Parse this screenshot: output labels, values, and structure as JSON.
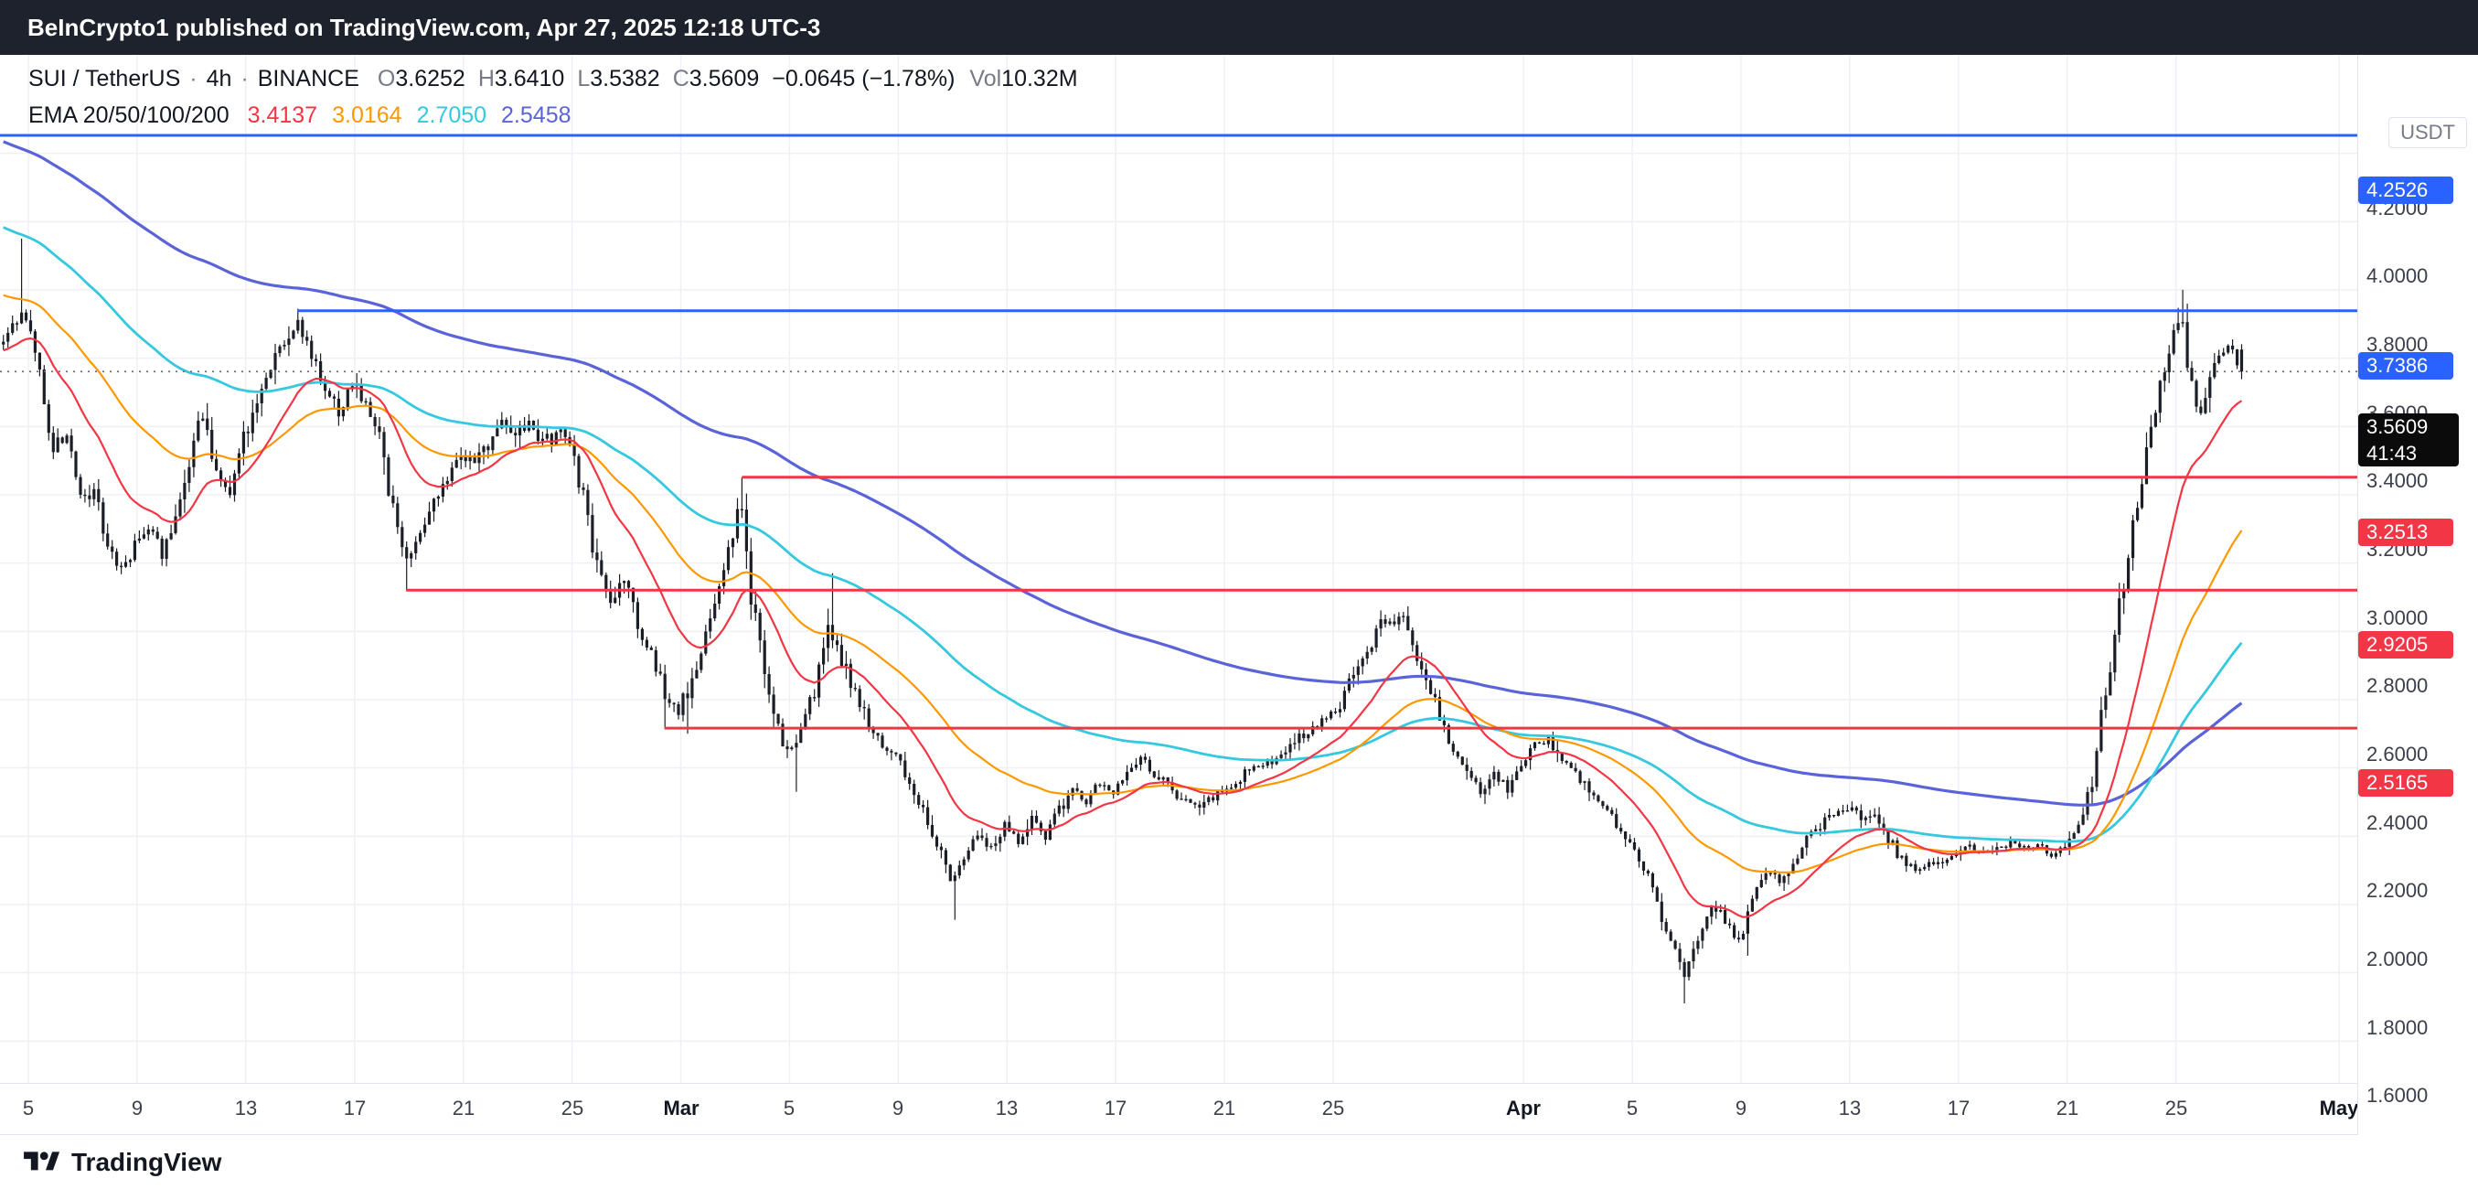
{
  "header": {
    "title": "BeInCrypto1 published on TradingView.com, Apr 27, 2025 12:18 UTC-3"
  },
  "footer": {
    "brand": "TradingView"
  },
  "legend": {
    "symbol": "SUI / TetherUS",
    "sep": "·",
    "interval": "4h",
    "exchange": "BINANCE",
    "o_label": "O",
    "o_value": "3.6252",
    "h_label": "H",
    "h_value": "3.6410",
    "l_label": "L",
    "l_value": "3.5382",
    "c_label": "C",
    "c_value": "3.5609",
    "change": "−0.0645 (−1.78%)",
    "vol_label": "Vol",
    "vol_value": "10.32M",
    "ema_label": "EMA 20/50/100/200",
    "ema_values": [
      "3.4137",
      "3.0164",
      "2.7050",
      "2.5458"
    ]
  },
  "axis": {
    "quote_currency": "USDT"
  },
  "colors": {
    "level_blue": "#2962FF",
    "level_red": "#F23645",
    "ema20": "#F23645",
    "ema50": "#FF9800",
    "ema100": "#35C8DF",
    "ema200": "#5A64D8",
    "candle": "#1b1e27",
    "grid": "#eef0f6",
    "dotted": "#6a6d78",
    "axis_text": "#3c3f4a",
    "badge_current_bg": "#0b0b0b",
    "header_bg": "#1e222d",
    "text_dark": "#131722",
    "text_muted": "#787b86"
  },
  "chart_data": {
    "type": "candlestick",
    "title": "SUI / TetherUS · 4h · BINANCE",
    "symbol": "SUI/USDT",
    "interval": "4h",
    "current_price": 3.5609,
    "countdown": "41:43",
    "last_candle": {
      "open": 3.6252,
      "high": 3.641,
      "low": 3.5382,
      "close": 3.5609,
      "change": -0.0645,
      "change_pct": -1.78,
      "volume": "10.32M"
    },
    "y_axis": {
      "min": 1.478,
      "max": 4.488,
      "tick_step": 0.2,
      "ticks": [
        4.2,
        4.0,
        3.8,
        3.6,
        3.4,
        3.2,
        3.0,
        2.8,
        2.6,
        2.4,
        2.2,
        2.0,
        1.8,
        1.6
      ]
    },
    "x_axis": {
      "origin": "Feb 5 2025",
      "units": "days",
      "ticks": [
        {
          "label": "5",
          "d": 0
        },
        {
          "label": "9",
          "d": 4
        },
        {
          "label": "13",
          "d": 8
        },
        {
          "label": "17",
          "d": 12
        },
        {
          "label": "21",
          "d": 16
        },
        {
          "label": "25",
          "d": 20
        },
        {
          "label": "Mar",
          "d": 24,
          "bold": true
        },
        {
          "label": "5",
          "d": 28
        },
        {
          "label": "9",
          "d": 32
        },
        {
          "label": "13",
          "d": 36
        },
        {
          "label": "17",
          "d": 40
        },
        {
          "label": "21",
          "d": 44
        },
        {
          "label": "25",
          "d": 48
        },
        {
          "label": "Apr",
          "d": 55,
          "bold": true
        },
        {
          "label": "5",
          "d": 59
        },
        {
          "label": "9",
          "d": 63
        },
        {
          "label": "13",
          "d": 67
        },
        {
          "label": "17",
          "d": 71
        },
        {
          "label": "21",
          "d": 75
        },
        {
          "label": "25",
          "d": 79
        },
        {
          "label": "May",
          "d": 85,
          "bold": true
        }
      ]
    },
    "horizontal_levels": [
      {
        "price": 4.2526,
        "color": "level_blue",
        "start_d": null
      },
      {
        "price": 3.7386,
        "color": "level_blue",
        "start_d": 9.9
      },
      {
        "price": 3.2513,
        "color": "level_red",
        "start_d": 26.25
      },
      {
        "price": 2.9205,
        "color": "level_red",
        "start_d": 13.9
      },
      {
        "price": 2.5165,
        "color": "level_red",
        "start_d": 23.4
      }
    ],
    "emas": {
      "periods": [
        20,
        50,
        100,
        200
      ],
      "current": [
        3.4137,
        3.0164,
        2.705,
        2.5458
      ],
      "initial": [
        3.62,
        3.79,
        3.99,
        4.24
      ]
    },
    "price_path_anchors": [
      [
        -1.0,
        3.64
      ],
      [
        -0.5,
        3.7
      ],
      [
        0,
        3.72
      ],
      [
        0.5,
        3.55
      ],
      [
        1,
        3.32
      ],
      [
        1.5,
        3.38
      ],
      [
        2,
        3.18
      ],
      [
        2.5,
        3.22
      ],
      [
        3,
        3.06
      ],
      [
        3.5,
        2.98
      ],
      [
        4,
        3.06
      ],
      [
        4.5,
        3.1
      ],
      [
        5,
        3.03
      ],
      [
        5.5,
        3.15
      ],
      [
        6,
        3.3
      ],
      [
        6.5,
        3.45
      ],
      [
        7,
        3.28
      ],
      [
        7.5,
        3.2
      ],
      [
        8,
        3.35
      ],
      [
        8.5,
        3.5
      ],
      [
        9,
        3.55
      ],
      [
        9.5,
        3.64
      ],
      [
        10,
        3.71
      ],
      [
        10.5,
        3.6
      ],
      [
        11,
        3.5
      ],
      [
        11.5,
        3.45
      ],
      [
        12,
        3.52
      ],
      [
        12.5,
        3.46
      ],
      [
        13,
        3.4
      ],
      [
        13.5,
        3.15
      ],
      [
        14,
        3.02
      ],
      [
        14.5,
        3.1
      ],
      [
        15,
        3.18
      ],
      [
        15.5,
        3.25
      ],
      [
        16,
        3.32
      ],
      [
        16.5,
        3.28
      ],
      [
        17,
        3.35
      ],
      [
        17.5,
        3.44
      ],
      [
        18,
        3.38
      ],
      [
        18.5,
        3.42
      ],
      [
        19,
        3.35
      ],
      [
        19.5,
        3.38
      ],
      [
        20,
        3.35
      ],
      [
        20.5,
        3.2
      ],
      [
        21,
        3.0
      ],
      [
        21.5,
        2.9
      ],
      [
        22,
        2.96
      ],
      [
        22.5,
        2.82
      ],
      [
        23,
        2.74
      ],
      [
        23.5,
        2.62
      ],
      [
        24,
        2.56
      ],
      [
        24.5,
        2.66
      ],
      [
        25,
        2.8
      ],
      [
        25.5,
        2.95
      ],
      [
        26,
        3.1
      ],
      [
        26.3,
        3.18
      ],
      [
        26.6,
        2.92
      ],
      [
        27,
        2.76
      ],
      [
        27.5,
        2.56
      ],
      [
        28,
        2.44
      ],
      [
        28.5,
        2.52
      ],
      [
        29,
        2.62
      ],
      [
        29.5,
        2.82
      ],
      [
        30,
        2.72
      ],
      [
        30.5,
        2.62
      ],
      [
        31,
        2.52
      ],
      [
        31.5,
        2.47
      ],
      [
        32,
        2.44
      ],
      [
        32.5,
        2.36
      ],
      [
        33,
        2.27
      ],
      [
        33.5,
        2.17
      ],
      [
        34,
        2.08
      ],
      [
        34.5,
        2.13
      ],
      [
        35,
        2.2
      ],
      [
        35.5,
        2.16
      ],
      [
        36,
        2.23
      ],
      [
        36.5,
        2.19
      ],
      [
        37,
        2.26
      ],
      [
        37.5,
        2.21
      ],
      [
        38,
        2.28
      ],
      [
        38.5,
        2.33
      ],
      [
        39,
        2.3
      ],
      [
        39.5,
        2.36
      ],
      [
        40,
        2.33
      ],
      [
        40.5,
        2.39
      ],
      [
        41,
        2.43
      ],
      [
        41.5,
        2.38
      ],
      [
        42,
        2.35
      ],
      [
        42.5,
        2.31
      ],
      [
        43,
        2.29
      ],
      [
        43.5,
        2.31
      ],
      [
        44,
        2.34
      ],
      [
        44.5,
        2.36
      ],
      [
        45,
        2.39
      ],
      [
        45.5,
        2.41
      ],
      [
        46,
        2.43
      ],
      [
        46.5,
        2.46
      ],
      [
        47,
        2.49
      ],
      [
        47.5,
        2.53
      ],
      [
        48,
        2.56
      ],
      [
        48.5,
        2.61
      ],
      [
        49,
        2.69
      ],
      [
        49.5,
        2.76
      ],
      [
        50,
        2.83
      ],
      [
        50.5,
        2.85
      ],
      [
        51,
        2.78
      ],
      [
        51.5,
        2.66
      ],
      [
        52,
        2.56
      ],
      [
        52.5,
        2.46
      ],
      [
        53,
        2.39
      ],
      [
        53.5,
        2.33
      ],
      [
        54,
        2.39
      ],
      [
        54.5,
        2.33
      ],
      [
        55,
        2.41
      ],
      [
        55.5,
        2.46
      ],
      [
        56,
        2.49
      ],
      [
        56.5,
        2.43
      ],
      [
        57,
        2.39
      ],
      [
        57.5,
        2.33
      ],
      [
        58,
        2.29
      ],
      [
        58.5,
        2.23
      ],
      [
        59,
        2.19
      ],
      [
        59.5,
        2.11
      ],
      [
        60,
        2.01
      ],
      [
        60.5,
        1.89
      ],
      [
        61,
        1.79
      ],
      [
        61.5,
        1.91
      ],
      [
        62,
        2.01
      ],
      [
        62.5,
        1.96
      ],
      [
        63,
        1.89
      ],
      [
        63.5,
        2.01
      ],
      [
        64,
        2.1
      ],
      [
        64.5,
        2.06
      ],
      [
        65,
        2.13
      ],
      [
        65.5,
        2.19
      ],
      [
        66,
        2.23
      ],
      [
        66.5,
        2.27
      ],
      [
        67,
        2.29
      ],
      [
        67.5,
        2.25
      ],
      [
        68,
        2.27
      ],
      [
        68.5,
        2.19
      ],
      [
        69,
        2.13
      ],
      [
        69.5,
        2.09
      ],
      [
        70,
        2.11
      ],
      [
        70.5,
        2.13
      ],
      [
        71,
        2.15
      ],
      [
        71.5,
        2.17
      ],
      [
        72,
        2.15
      ],
      [
        72.5,
        2.17
      ],
      [
        73,
        2.18
      ],
      [
        73.5,
        2.16
      ],
      [
        74,
        2.17
      ],
      [
        74.5,
        2.15
      ],
      [
        75,
        2.17
      ],
      [
        75.5,
        2.23
      ],
      [
        76,
        2.36
      ],
      [
        76.5,
        2.62
      ],
      [
        77,
        2.88
      ],
      [
        77.5,
        3.12
      ],
      [
        78,
        3.32
      ],
      [
        78.5,
        3.52
      ],
      [
        79,
        3.66
      ],
      [
        79.3,
        3.72
      ],
      [
        79.6,
        3.5
      ],
      [
        80,
        3.46
      ],
      [
        80.5,
        3.58
      ],
      [
        81,
        3.63
      ],
      [
        81.5,
        3.56
      ]
    ],
    "wick_extremes": [
      {
        "d": -0.2,
        "type": "high",
        "p": 3.95
      },
      {
        "d": 9.9,
        "type": "high",
        "p": 3.745
      },
      {
        "d": 13.9,
        "type": "low",
        "p": 2.92
      },
      {
        "d": 23.4,
        "type": "low",
        "p": 2.515
      },
      {
        "d": 24.2,
        "type": "low",
        "p": 2.5
      },
      {
        "d": 26.25,
        "type": "high",
        "p": 3.251
      },
      {
        "d": 28.2,
        "type": "low",
        "p": 2.33
      },
      {
        "d": 29.5,
        "type": "high",
        "p": 2.97
      },
      {
        "d": 34.1,
        "type": "low",
        "p": 1.955
      },
      {
        "d": 60.9,
        "type": "low",
        "p": 1.71
      },
      {
        "d": 63.2,
        "type": "low",
        "p": 1.85
      },
      {
        "d": 79.25,
        "type": "high",
        "p": 3.8
      }
    ]
  }
}
